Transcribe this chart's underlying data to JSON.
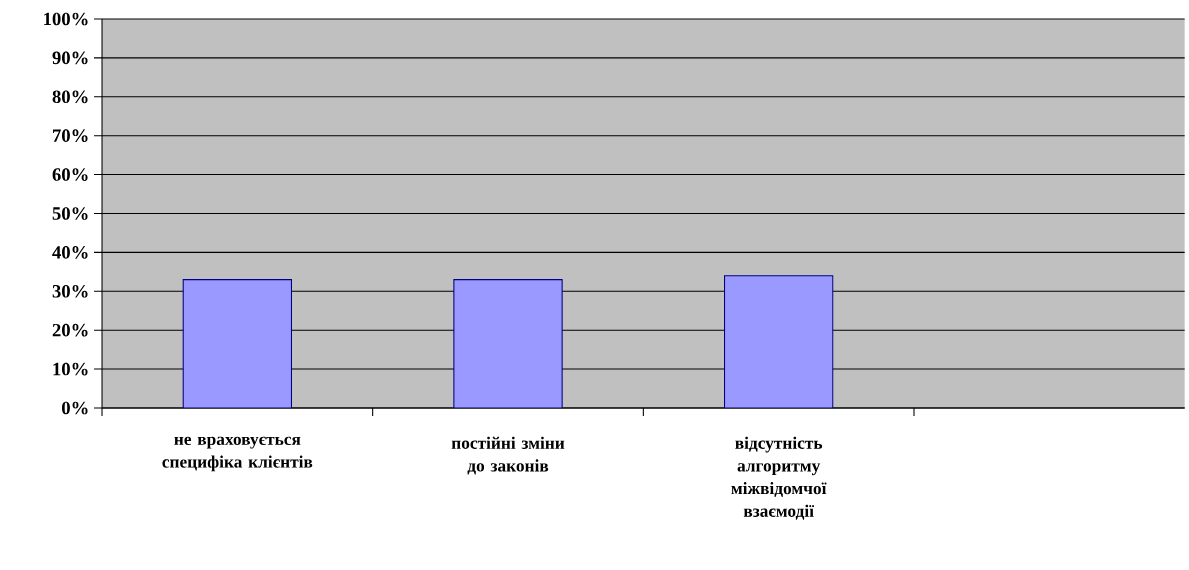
{
  "chart_data": {
    "type": "bar",
    "categories": [
      "не враховується специфіка клієнтів",
      "постійні зміни до законів",
      "відсутність алгоритму міжвідомчої взаємодії",
      null
    ],
    "values": [
      33,
      33,
      34,
      null
    ],
    "color": "#9999ff",
    "ylim": [
      0,
      100
    ],
    "yticks": [
      {
        "value": 0,
        "label": "0%"
      },
      {
        "value": 10,
        "label": "10%"
      },
      {
        "value": 20,
        "label": "20%"
      },
      {
        "value": 30,
        "label": "30%"
      },
      {
        "value": 40,
        "label": "40%"
      },
      {
        "value": 50,
        "label": "50%"
      },
      {
        "value": 60,
        "label": "60%"
      },
      {
        "value": 70,
        "label": "70%"
      },
      {
        "value": 80,
        "label": "80%"
      },
      {
        "value": 90,
        "label": "90%"
      },
      {
        "value": 100,
        "label": "100%"
      }
    ],
    "grid": "y"
  }
}
